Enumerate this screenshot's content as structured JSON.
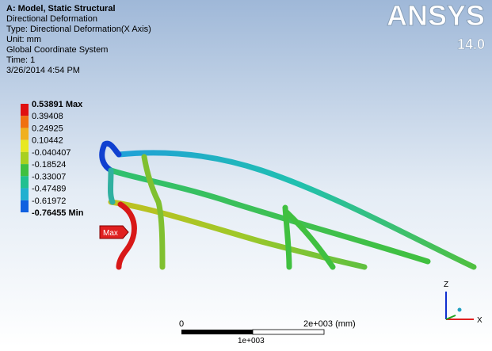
{
  "header": {
    "title": "A: Model, Static Structural",
    "lines": [
      "Directional Deformation",
      "Type: Directional Deformation(X Axis)",
      "Unit: mm",
      "Global Coordinate System",
      "Time: 1",
      "3/26/2014 4:54 PM"
    ]
  },
  "logo": {
    "name": "ANSYS",
    "version": "14.0"
  },
  "legend": {
    "labels": [
      "0.53891 Max",
      "0.39408",
      "0.24925",
      "0.10442",
      "-0.040407",
      "-0.18524",
      "-0.33007",
      "-0.47489",
      "-0.61972",
      "-0.76455 Min"
    ],
    "colors": [
      "#e01010",
      "#f07010",
      "#f0b020",
      "#e8e820",
      "#a8d020",
      "#40c040",
      "#20c090",
      "#20b0d0",
      "#1060e0"
    ]
  },
  "probe": {
    "label": "Max"
  },
  "scale_bar": {
    "start": "0",
    "end": "2e+003 (mm)",
    "middle": "1e+003"
  },
  "triad": {
    "z": "Z",
    "x": "X"
  }
}
